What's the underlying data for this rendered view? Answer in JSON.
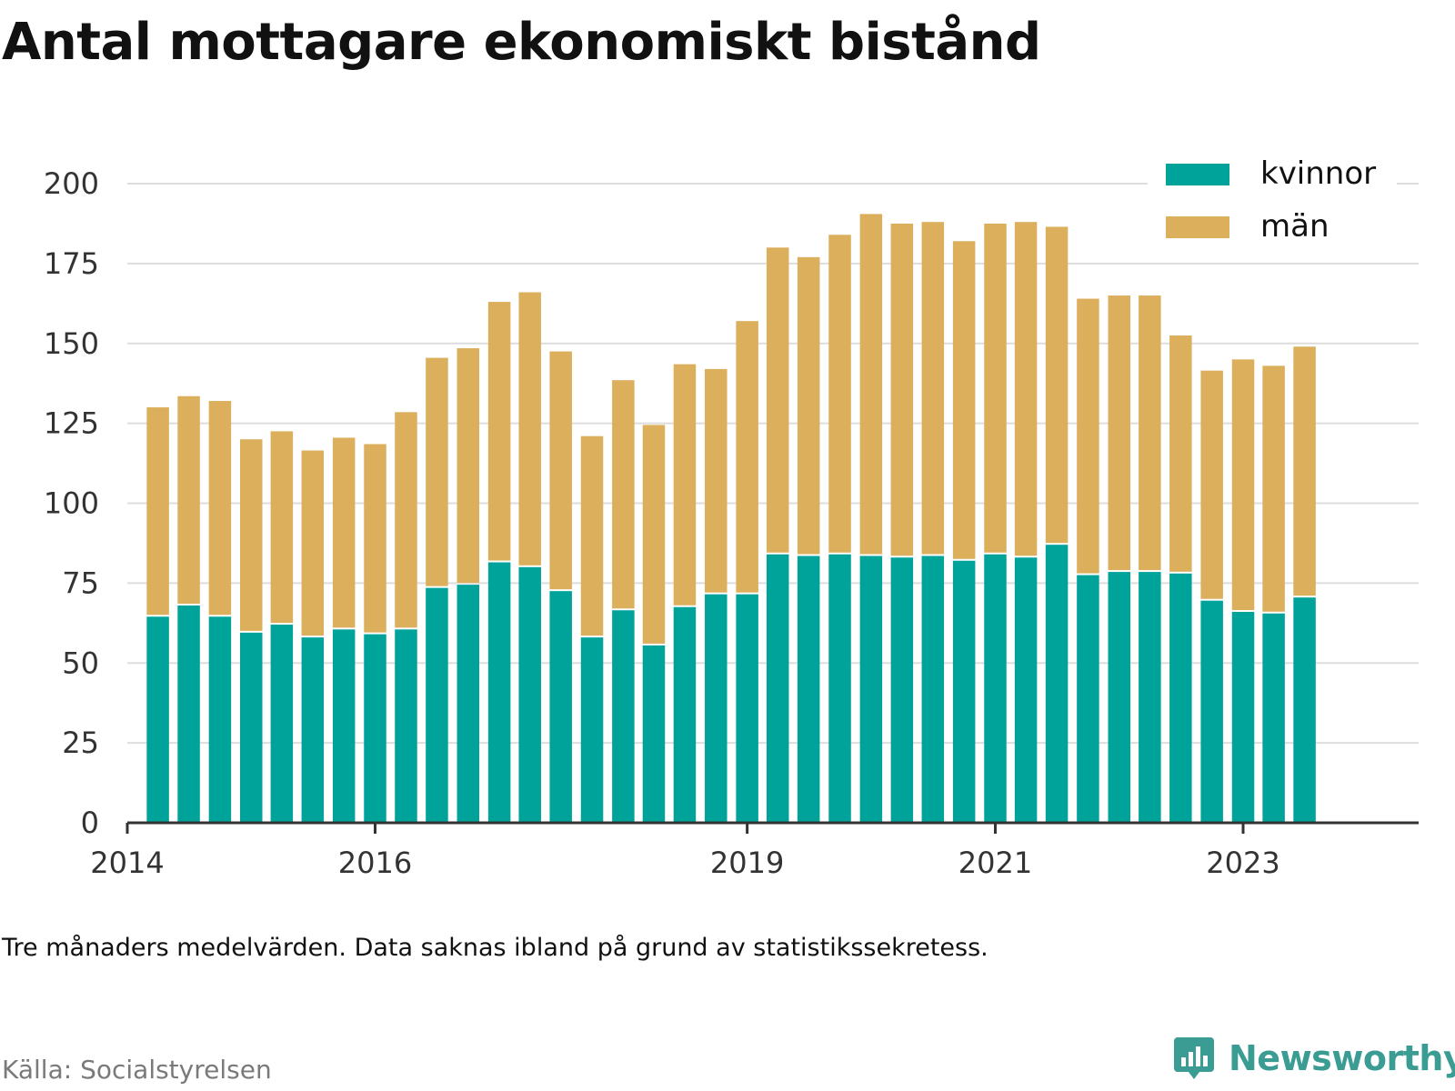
{
  "title": "Antal mottagare ekonomiskt bistånd",
  "note": "Tre månaders medelvärden. Data saknas ibland på grund av statistikssekretess.",
  "source": "Källa: Socialstyrelsen",
  "brand": {
    "name": "Newsworthy",
    "icon": "newsworthy-bar-chart-icon",
    "color": "#3a9c92"
  },
  "colors": {
    "kvinnor": "#00a39a",
    "man": "#dbaf5c",
    "grid": "#dddddd",
    "axis": "#333333"
  },
  "chart_data": {
    "type": "bar",
    "stacked": true,
    "ylim": [
      0,
      200
    ],
    "yticks": [
      0,
      25,
      50,
      75,
      100,
      125,
      150,
      175,
      200
    ],
    "xlim": [
      "2014-01-01",
      "2024-06-01"
    ],
    "xticks": [
      {
        "label": "2014",
        "date": "2014-01-01"
      },
      {
        "label": "2016",
        "date": "2016-01-01"
      },
      {
        "label": "2019",
        "date": "2019-01-01"
      },
      {
        "label": "2021",
        "date": "2021-01-01"
      },
      {
        "label": "2023",
        "date": "2023-01-01"
      }
    ],
    "legend_position": "top-right",
    "grid": true,
    "x": [
      "2014-04-01",
      "2014-07-01",
      "2014-10-01",
      "2015-01-01",
      "2015-04-01",
      "2015-07-01",
      "2015-10-01",
      "2016-01-01",
      "2016-04-01",
      "2016-07-01",
      "2016-10-01",
      "2017-01-01",
      "2017-04-01",
      "2017-07-01",
      "2017-10-01",
      "2018-01-01",
      "2018-04-01",
      "2018-07-01",
      "2018-10-01",
      "2019-01-01",
      "2019-04-01",
      "2019-07-01",
      "2019-10-01",
      "2020-01-01",
      "2020-04-01",
      "2020-07-01",
      "2020-10-01",
      "2021-01-01",
      "2021-04-01",
      "2021-07-01",
      "2021-10-01",
      "2022-01-01",
      "2022-04-01",
      "2022-07-01",
      "2022-10-01",
      "2023-01-01",
      "2023-04-01",
      "2023-07-01"
    ],
    "series": [
      {
        "name": "kvinnor",
        "values": [
          64.5,
          68,
          64.5,
          59.5,
          62,
          58,
          60.5,
          59,
          60.5,
          73.5,
          74.5,
          81.5,
          80,
          72.5,
          58,
          66.5,
          55.5,
          67.5,
          71.5,
          71.5,
          84,
          83.5,
          84,
          83.5,
          83,
          83.5,
          82,
          84,
          83,
          87,
          77.5,
          78.5,
          78.5,
          78,
          69.5,
          66,
          65.5,
          70.5
        ]
      },
      {
        "name": "män",
        "values": [
          65.5,
          65.5,
          67.5,
          60.5,
          60.5,
          58.5,
          60,
          59.5,
          68,
          72,
          74,
          81.5,
          86,
          75,
          63,
          72,
          69,
          76,
          70.5,
          85.5,
          96,
          93.5,
          100,
          107,
          104.5,
          104.5,
          100,
          103.5,
          105,
          99.5,
          86.5,
          86.5,
          86.5,
          74.5,
          72,
          79,
          77.5,
          78.5
        ]
      }
    ]
  }
}
